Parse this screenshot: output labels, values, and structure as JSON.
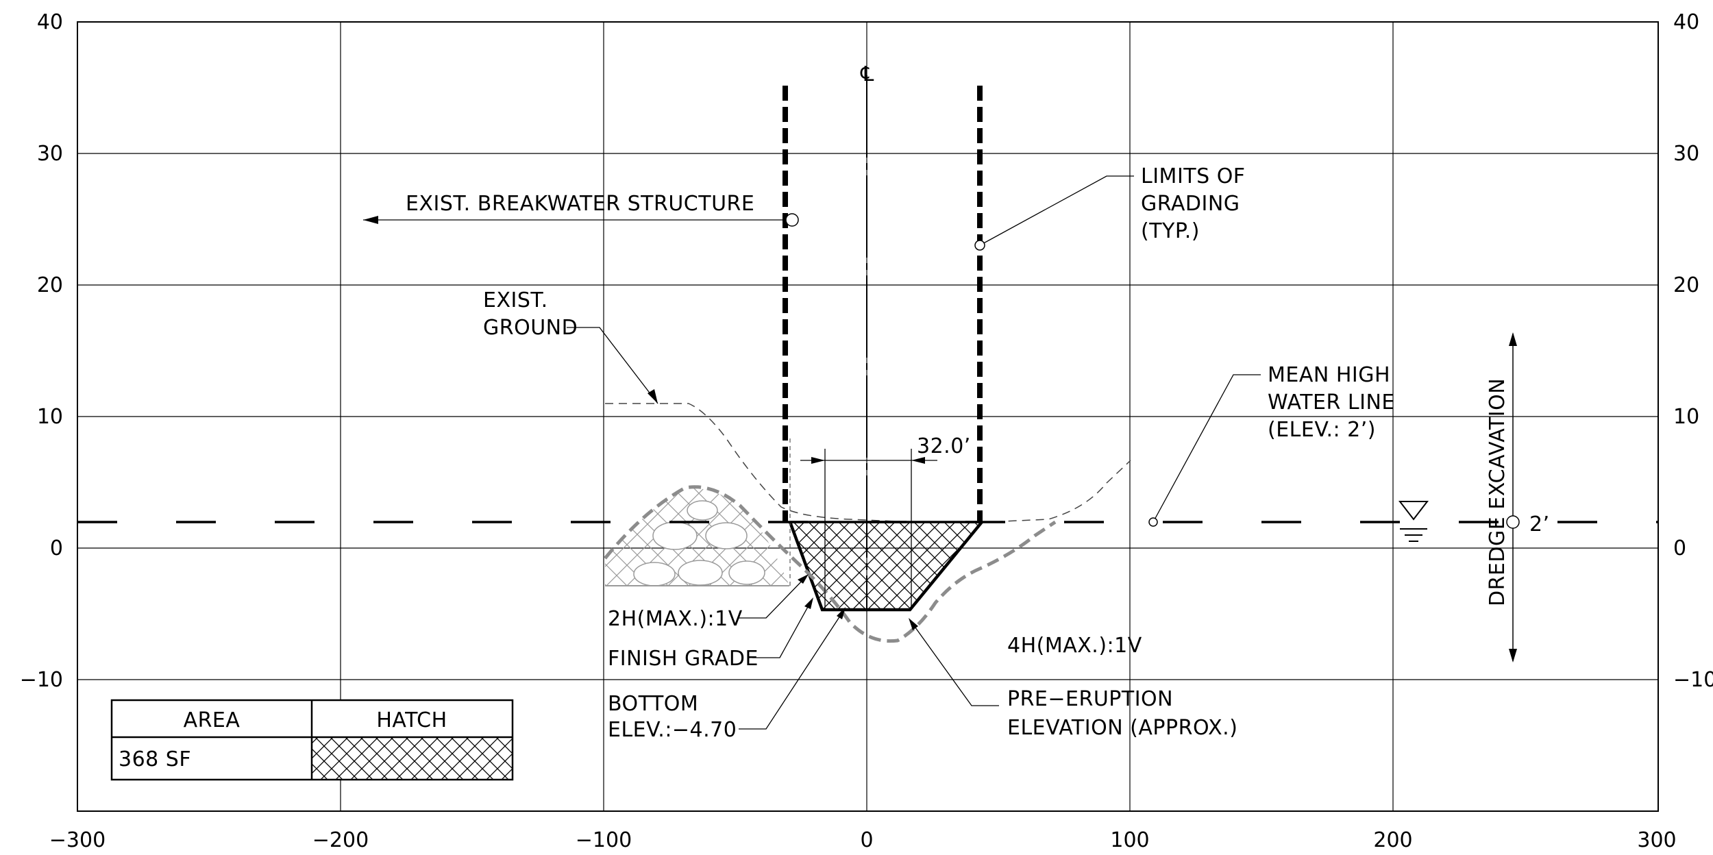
{
  "axes": {
    "x_ticks": [
      "−300",
      "−200",
      "−100",
      "0",
      "100",
      "200",
      "300"
    ],
    "y_ticks": [
      "40",
      "30",
      "20",
      "10",
      "0",
      "−10"
    ]
  },
  "labels": {
    "centerline": "℄",
    "breakwater": "EXIST. BREAKWATER STRUCTURE",
    "limits_1": "LIMITS OF",
    "limits_2": "GRADING",
    "limits_3": "(TYP.)",
    "ground_1": "EXIST.",
    "ground_2": "GROUND",
    "mhw_1": "MEAN HIGH",
    "mhw_2": "WATER LINE",
    "mhw_3": "(ELEV.: 2’)",
    "dimension": "32.0’",
    "dredge": "DREDGE EXCAVATION",
    "water_elev": "2’",
    "slope_left": "2H(MAX.):1V",
    "finish_grade": "FINISH GRADE",
    "bottom_1": "BOTTOM",
    "bottom_2": "ELEV.:−4.70",
    "slope_right": "4H(MAX.):1V",
    "pre_eruption_1": "PRE−ERUPTION",
    "pre_eruption_2": "ELEVATION (APPROX.)"
  },
  "legend": {
    "header_area": "AREA",
    "header_hatch": "HATCH",
    "area_value": "368 SF"
  }
}
